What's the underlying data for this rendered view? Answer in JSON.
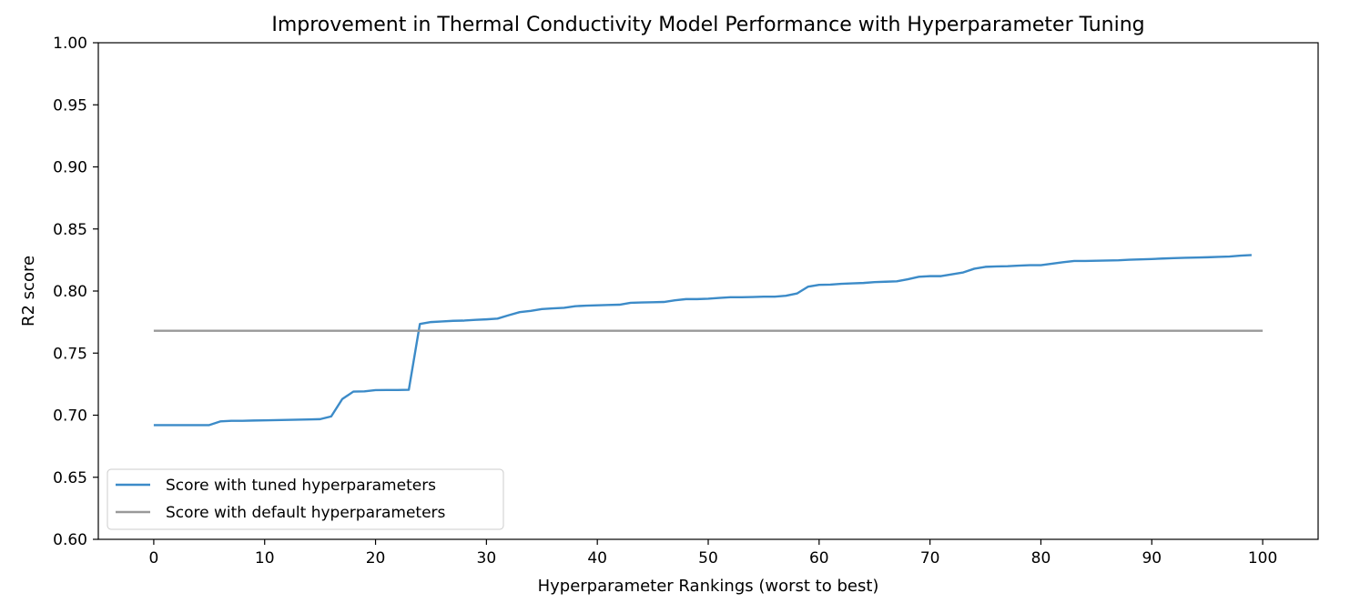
{
  "chart_data": {
    "type": "line",
    "title": "Improvement in Thermal Conductivity Model Performance with Hyperparameter Tuning",
    "xlabel": "Hyperparameter Rankings (worst to best)",
    "ylabel": "R2 score",
    "xlim": [
      -5,
      105
    ],
    "ylim": [
      0.6,
      1.0
    ],
    "xticks": [
      0,
      10,
      20,
      30,
      40,
      50,
      60,
      70,
      80,
      90,
      100
    ],
    "yticks": [
      0.6,
      0.65,
      0.7,
      0.75,
      0.8,
      0.85,
      0.9,
      0.95,
      1.0
    ],
    "xtick_labels": [
      "0",
      "10",
      "20",
      "30",
      "40",
      "50",
      "60",
      "70",
      "80",
      "90",
      "100"
    ],
    "ytick_labels": [
      "0.60",
      "0.65",
      "0.70",
      "0.75",
      "0.80",
      "0.85",
      "0.90",
      "0.95",
      "1.00"
    ],
    "grid": false,
    "legend_position": "lower-left",
    "series": [
      {
        "name": "Score with tuned hyperparameters",
        "color": "#3c8bc8",
        "x": [
          0,
          1,
          2,
          3,
          4,
          5,
          6,
          7,
          8,
          9,
          10,
          11,
          12,
          13,
          14,
          15,
          16,
          17,
          18,
          19,
          20,
          21,
          22,
          23,
          24,
          25,
          26,
          27,
          28,
          29,
          30,
          31,
          32,
          33,
          34,
          35,
          36,
          37,
          38,
          39,
          40,
          41,
          42,
          43,
          44,
          45,
          46,
          47,
          48,
          49,
          50,
          51,
          52,
          53,
          54,
          55,
          56,
          57,
          58,
          59,
          60,
          61,
          62,
          63,
          64,
          65,
          66,
          67,
          68,
          69,
          70,
          71,
          72,
          73,
          74,
          75,
          76,
          77,
          78,
          79,
          80,
          81,
          82,
          83,
          84,
          85,
          86,
          87,
          88,
          89,
          90,
          91,
          92,
          93,
          94,
          95,
          96,
          97,
          98,
          99
        ],
        "y": [
          0.692,
          0.692,
          0.692,
          0.692,
          0.692,
          0.692,
          0.695,
          0.6955,
          0.6955,
          0.6957,
          0.6958,
          0.696,
          0.6962,
          0.6964,
          0.6966,
          0.6968,
          0.699,
          0.713,
          0.719,
          0.7192,
          0.7202,
          0.7203,
          0.7203,
          0.7205,
          0.7735,
          0.775,
          0.7755,
          0.776,
          0.7762,
          0.7768,
          0.7772,
          0.7778,
          0.7805,
          0.783,
          0.784,
          0.7855,
          0.786,
          0.7865,
          0.7878,
          0.7882,
          0.7885,
          0.7888,
          0.789,
          0.7905,
          0.7908,
          0.791,
          0.7912,
          0.7925,
          0.7935,
          0.7935,
          0.7938,
          0.7945,
          0.795,
          0.795,
          0.7952,
          0.7955,
          0.7955,
          0.7962,
          0.798,
          0.8035,
          0.805,
          0.8052,
          0.8058,
          0.8062,
          0.8065,
          0.8072,
          0.8075,
          0.8078,
          0.8095,
          0.8115,
          0.812,
          0.812,
          0.8135,
          0.815,
          0.818,
          0.8195,
          0.8198,
          0.82,
          0.8205,
          0.8208,
          0.8208,
          0.822,
          0.8232,
          0.8242,
          0.8242,
          0.8244,
          0.8246,
          0.8248,
          0.8252,
          0.8255,
          0.8258,
          0.8262,
          0.8265,
          0.8268,
          0.827,
          0.8272,
          0.8275,
          0.8278,
          0.8285,
          0.829
        ]
      },
      {
        "name": "Score with default hyperparameters",
        "color": "#999999",
        "x": [
          0,
          100
        ],
        "y": [
          0.768,
          0.768
        ]
      }
    ]
  }
}
